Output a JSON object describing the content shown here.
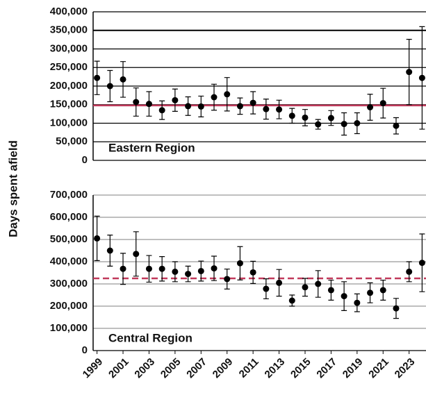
{
  "chart_data": [
    {
      "type": "errorbar",
      "ylabel": "Days  spent afield",
      "annotation": "Eastern Region",
      "x": [
        1999,
        2000,
        2001,
        2002,
        2003,
        2004,
        2005,
        2006,
        2007,
        2008,
        2009,
        2010,
        2011,
        2012,
        2013,
        2014,
        2015,
        2016,
        2017,
        2018,
        2019,
        2020,
        2021,
        2022,
        2023,
        2024
      ],
      "xlim": [
        1998.7,
        2024.3
      ],
      "series": [
        {
          "color": "#000000",
          "values": [
            222000,
            200000,
            218000,
            157000,
            152000,
            135000,
            162000,
            146000,
            145000,
            170000,
            178000,
            146000,
            155000,
            138000,
            137000,
            120000,
            115000,
            97000,
            114000,
            98000,
            100000,
            143000,
            154000,
            93000,
            238000,
            222000
          ],
          "errors": [
            45000,
            42000,
            48000,
            38000,
            33000,
            25000,
            30000,
            25000,
            28000,
            35000,
            45000,
            22000,
            30000,
            27000,
            25000,
            20000,
            22000,
            13000,
            20000,
            30000,
            28000,
            35000,
            40000,
            22000,
            88000,
            138000
          ]
        }
      ],
      "mean_line": {
        "value": 148000,
        "color": "#c0395a",
        "dashed": false
      },
      "ylim": [
        0,
        400000
      ],
      "yticks": [
        0,
        {
          "value": 50000,
          "label": "50,000"
        },
        {
          "value": 100000,
          "label": "100,000"
        },
        {
          "value": 150000,
          "label": "150,000"
        },
        {
          "value": 200000,
          "label": "200,000"
        },
        {
          "value": 250000,
          "label": "250,000"
        },
        {
          "value": 300000,
          "label": "300,000"
        },
        {
          "value": 350000,
          "label": "350,000"
        },
        {
          "value": 400000,
          "label": "400,000"
        }
      ],
      "grid": true,
      "grid_color": "#000000"
    },
    {
      "type": "errorbar",
      "annotation": "Central Region",
      "x": [
        1999,
        2000,
        2001,
        2002,
        2003,
        2004,
        2005,
        2006,
        2007,
        2008,
        2009,
        2010,
        2011,
        2012,
        2013,
        2014,
        2015,
        2016,
        2017,
        2018,
        2019,
        2020,
        2021,
        2022,
        2023,
        2024
      ],
      "xlim": [
        1998.7,
        2024.3
      ],
      "xticks": [
        1999,
        2001,
        2003,
        2005,
        2007,
        2009,
        2011,
        2013,
        2015,
        2017,
        2019,
        2021,
        2023
      ],
      "series": [
        {
          "color": "#000000",
          "values": [
            505000,
            450000,
            368000,
            435000,
            368000,
            368000,
            355000,
            345000,
            358000,
            370000,
            322000,
            393000,
            352000,
            278000,
            305000,
            225000,
            285000,
            300000,
            272000,
            245000,
            215000,
            260000,
            272000,
            190000,
            355000,
            395000
          ],
          "errors": [
            100000,
            70000,
            70000,
            100000,
            60000,
            55000,
            45000,
            35000,
            45000,
            55000,
            45000,
            75000,
            50000,
            45000,
            60000,
            25000,
            40000,
            60000,
            45000,
            65000,
            40000,
            45000,
            45000,
            45000,
            45000,
            130000
          ]
        }
      ],
      "mean_line": {
        "value": 325000,
        "color": "#c0395a",
        "dashed": true
      },
      "ylim": [
        0,
        700000
      ],
      "yticks": [
        0,
        {
          "value": 100000,
          "label": "100,000"
        },
        {
          "value": 200000,
          "label": "200,000"
        },
        {
          "value": 300000,
          "label": "300,000"
        },
        {
          "value": 400000,
          "label": "400,000"
        },
        {
          "value": 500000,
          "label": "500,000"
        },
        {
          "value": 600000,
          "label": "600,000"
        },
        {
          "value": 700000,
          "label": "700,000"
        }
      ],
      "grid": true,
      "grid_color": "#999999"
    }
  ]
}
